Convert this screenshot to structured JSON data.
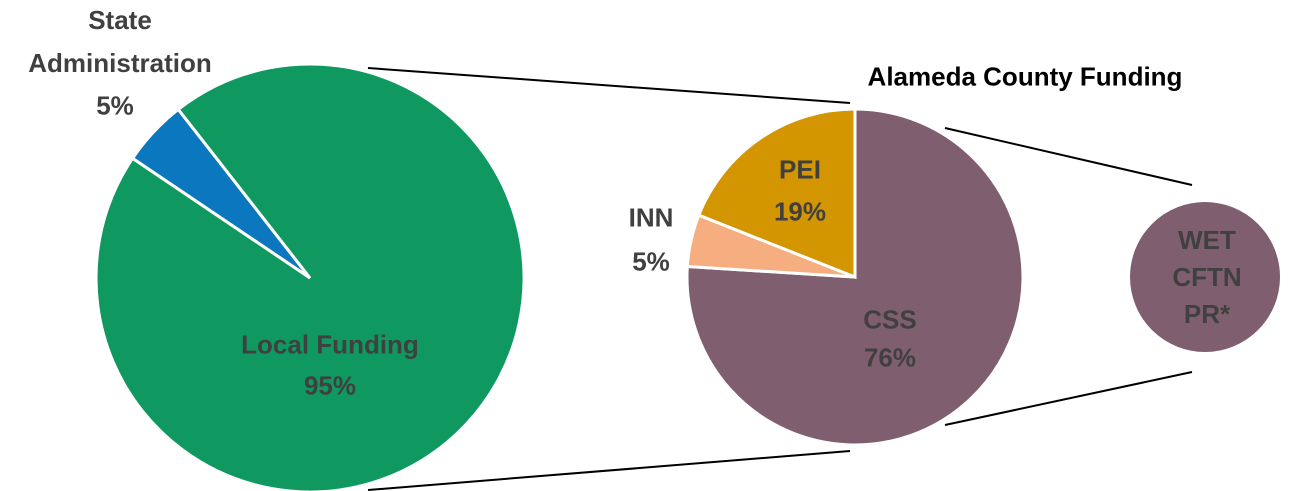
{
  "chart_data": [
    {
      "type": "pie",
      "categories": [
        "State Administration",
        "Local Funding"
      ],
      "values": [
        5,
        95
      ],
      "value_labels": [
        "5%",
        "95%"
      ],
      "colors": [
        "#0a77bf",
        "#0f9960"
      ]
    },
    {
      "type": "pie",
      "title": "Alameda County Funding",
      "categories": [
        "CSS",
        "INN",
        "PEI"
      ],
      "values": [
        76,
        5,
        19
      ],
      "value_labels": [
        "76%",
        "5%",
        "19%"
      ],
      "colors": [
        "#7f5f6f",
        "#f6ad80",
        "#d39500"
      ],
      "inset_labels": [
        "WET",
        "CFTN",
        "PR*"
      ]
    }
  ]
}
